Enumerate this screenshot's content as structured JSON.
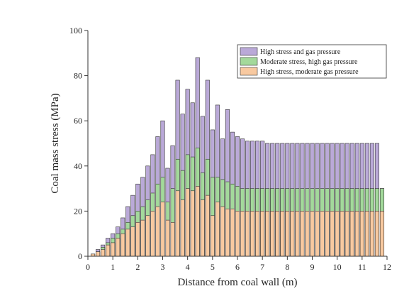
{
  "chart_data": {
    "type": "bar",
    "overlap": true,
    "xlabel": "Distance from coal wall (m)",
    "ylabel": "Coal mass stress (MPa)",
    "x": [
      0.2,
      0.4,
      0.6,
      0.8,
      1.0,
      1.2,
      1.4,
      1.6,
      1.8,
      2.0,
      2.2,
      2.4,
      2.6,
      2.8,
      3.0,
      3.2,
      3.4,
      3.6,
      3.8,
      4.0,
      4.2,
      4.4,
      4.6,
      4.8,
      5.0,
      5.2,
      5.4,
      5.6,
      5.8,
      6.0,
      6.2,
      6.4,
      6.6,
      6.8,
      7.0,
      7.2,
      7.4,
      7.6,
      7.8,
      8.0,
      8.2,
      8.4,
      8.6,
      8.8,
      9.0,
      9.2,
      9.4,
      9.6,
      9.8,
      10.0,
      10.2,
      10.4,
      10.6,
      10.8,
      11.0,
      11.2,
      11.4,
      11.6,
      11.8
    ],
    "series": [
      {
        "name": "High stress and gas pressure",
        "color": "#baa9d8",
        "values": [
          1,
          3,
          5,
          8,
          10,
          13,
          17,
          22,
          27,
          32,
          35,
          40,
          45,
          53,
          60,
          39,
          49,
          78,
          63,
          74,
          68,
          88,
          62,
          78,
          56,
          67,
          52,
          65,
          55,
          53,
          52,
          51,
          51,
          51,
          51,
          50,
          50,
          50,
          50,
          50,
          50,
          50,
          50,
          50,
          50,
          50,
          50,
          50,
          50,
          50,
          50,
          50,
          50,
          50,
          50,
          50,
          50,
          50,
          30
        ]
      },
      {
        "name": "Moderate stress, high gas pressure",
        "color": "#a3d99b",
        "values": [
          1,
          2,
          4,
          6,
          8,
          10,
          12,
          15,
          18,
          20,
          22,
          25,
          28,
          32,
          35,
          24,
          30,
          43,
          38,
          45,
          44,
          48,
          37,
          43,
          35,
          35,
          34,
          33,
          32,
          31,
          30,
          30,
          30,
          30,
          30,
          30,
          30,
          30,
          30,
          30,
          30,
          30,
          30,
          30,
          30,
          30,
          30,
          30,
          30,
          30,
          30,
          30,
          30,
          30,
          30,
          30,
          30,
          30,
          30
        ]
      },
      {
        "name": "High stress, moderate gas pressure",
        "color": "#f8c9a0",
        "values": [
          1,
          2,
          3,
          5,
          6,
          8,
          10,
          12,
          13,
          15,
          16,
          18,
          20,
          22,
          24,
          16,
          15,
          29,
          25,
          30,
          29,
          31,
          25,
          27,
          18,
          24,
          22,
          21,
          21,
          20,
          20,
          20,
          20,
          20,
          20,
          20,
          20,
          20,
          20,
          20,
          20,
          20,
          20,
          20,
          20,
          20,
          20,
          20,
          20,
          20,
          20,
          20,
          20,
          20,
          20,
          20,
          20,
          20,
          20
        ]
      }
    ],
    "xlim": [
      0,
      12
    ],
    "xticks": [
      0,
      1,
      2,
      3,
      4,
      5,
      6,
      7,
      8,
      9,
      10,
      11,
      12
    ],
    "ylim": [
      0,
      100
    ],
    "yticks": [
      0,
      20,
      40,
      60,
      80,
      100
    ],
    "legend": "upper right"
  }
}
